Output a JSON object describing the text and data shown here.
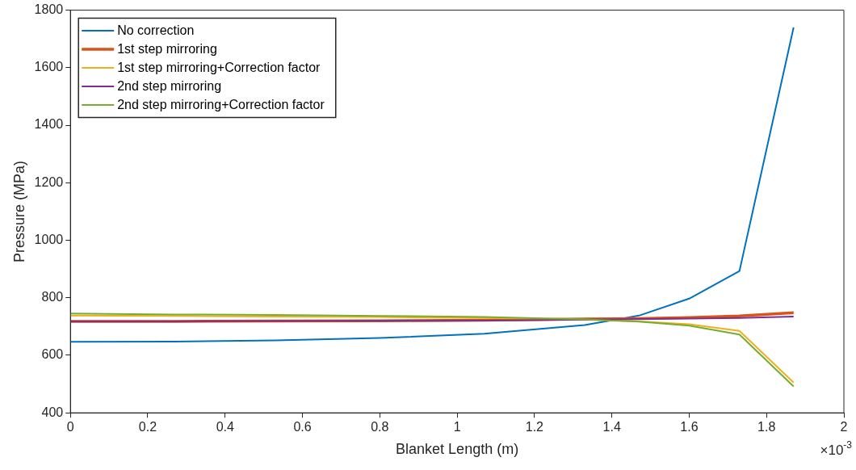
{
  "chart_data": {
    "type": "line",
    "xlabel": "Blanket Length (m)",
    "ylabel": "Pressure (MPa)",
    "x": [
      0,
      0.27,
      0.53,
      0.8,
      1.07,
      1.33,
      1.47,
      1.6,
      1.73,
      1.87
    ],
    "series": [
      {
        "name": "No correction",
        "color": "#0072bd",
        "values": [
          647,
          648,
          652,
          660,
          675,
          705,
          738,
          797,
          893,
          1740
        ]
      },
      {
        "name": "1st step mirroring",
        "color": "#d95319",
        "values": [
          718,
          718,
          719,
          720,
          722,
          726,
          728,
          731,
          737,
          748
        ]
      },
      {
        "name": "1st step mirroring+Correction factor",
        "color": "#edb120",
        "values": [
          738,
          737,
          735,
          733,
          730,
          724,
          718,
          708,
          685,
          505
        ]
      },
      {
        "name": "2nd step mirroring",
        "color": "#7e2f8e",
        "values": [
          718,
          718,
          719,
          720,
          721,
          724,
          726,
          728,
          730,
          735
        ]
      },
      {
        "name": "2nd step mirroring+Correction factor",
        "color": "#77ac30",
        "values": [
          745,
          742,
          740,
          737,
          733,
          725,
          717,
          703,
          672,
          492
        ]
      }
    ],
    "xlim": [
      0,
      2
    ],
    "xticks": [
      0,
      0.2,
      0.4,
      0.6,
      0.8,
      1,
      1.2,
      1.4,
      1.6,
      1.8,
      2
    ],
    "ylim": [
      400,
      1800
    ],
    "yticks": [
      400,
      600,
      800,
      1000,
      1200,
      1400,
      1600,
      1800
    ],
    "annotations": [
      "×10$^{-3}$"
    ],
    "grid": false,
    "legend": "top left",
    "marker": "none",
    "line_style": "solid"
  }
}
